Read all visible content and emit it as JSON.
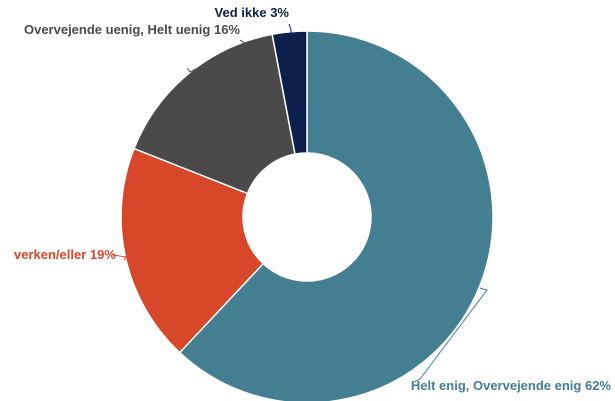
{
  "chart_data": {
    "type": "pie",
    "style": "donut",
    "title": "",
    "slices": [
      {
        "label": "Helt enig, Overvejende enig 62%",
        "value": 62,
        "color": "#437f91"
      },
      {
        "label": "verken/eller 19%",
        "value": 19,
        "color": "#d9472a"
      },
      {
        "label": "Overvejende uenig, Helt uenig 16%",
        "value": 16,
        "color": "#4a4a4a"
      },
      {
        "label": "Ved ikke 3%",
        "value": 3,
        "color": "#0d1f4b"
      }
    ],
    "legend": "none"
  }
}
